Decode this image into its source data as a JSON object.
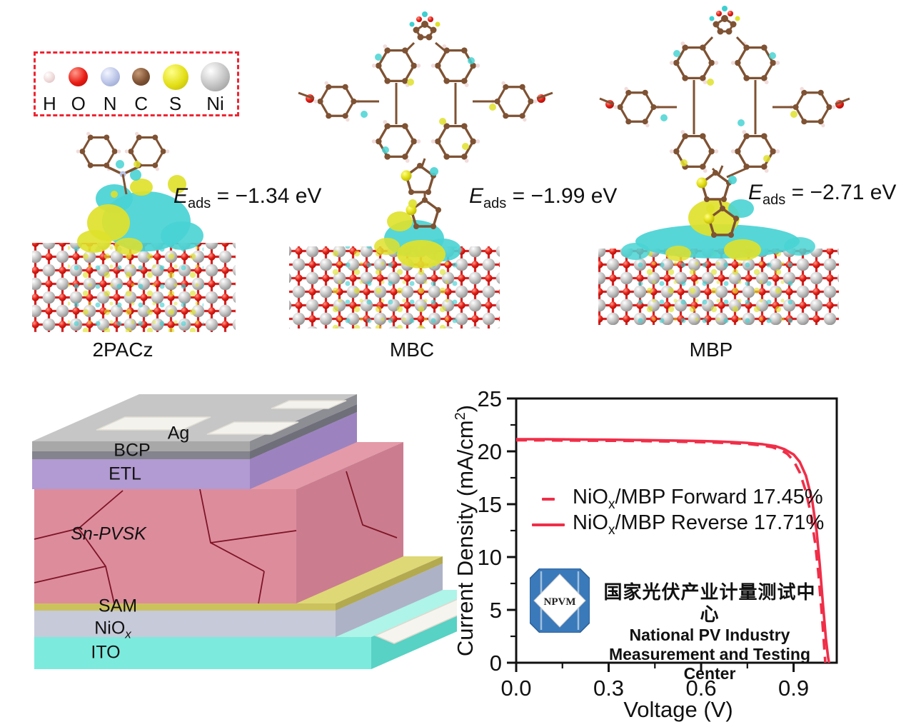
{
  "atom_legend": {
    "atoms": [
      {
        "symbol": "H",
        "color": "#f1dcdc",
        "ball_css": "width:16px;height:16px;background:radial-gradient(circle at 35% 30%,#ffffff,#f1dcdc 50%,#d9b9b9)"
      },
      {
        "symbol": "O",
        "color": "#e81c14",
        "ball_css": "width:27px;height:27px;background:radial-gradient(circle at 35% 30%,#ff9a8a,#e81c14 55%,#a80d08)"
      },
      {
        "symbol": "N",
        "color": "#b9c3e6",
        "ball_css": "width:27px;height:27px;background:radial-gradient(circle at 35% 30%,#f2f5ff,#b9c3e6 55%,#8e9cc8)"
      },
      {
        "symbol": "C",
        "color": "#7e5233",
        "ball_css": "width:25px;height:25px;background:radial-gradient(circle at 35% 30%,#c79a76,#7e5233 55%,#5b3a22)"
      },
      {
        "symbol": "S",
        "color": "#e3df17",
        "ball_css": "width:36px;height:36px;background:radial-gradient(circle at 35% 30%,#ffff8a,#e3df17 55%,#b8b409)"
      },
      {
        "symbol": "Ni",
        "color": "#c2c2c2",
        "ball_css": "width:41px;height:41px;background:radial-gradient(circle at 35% 30%,#ffffff,#c2c2c2 55%,#8f8f8f)"
      }
    ]
  },
  "panels": [
    {
      "molecule": "2PACz",
      "eads_symbol": "E",
      "eads_subscript": "ads",
      "eads_value": "= −1.34 eV"
    },
    {
      "molecule": "MBC",
      "eads_symbol": "E",
      "eads_subscript": "ads",
      "eads_value": "= −1.99 eV"
    },
    {
      "molecule": "MBP",
      "eads_symbol": "E",
      "eads_subscript": "ads",
      "eads_value": "= −2.71 eV"
    }
  ],
  "device": {
    "layers": [
      {
        "label": "Ag",
        "subscript": ""
      },
      {
        "label": "BCP",
        "subscript": ""
      },
      {
        "label": "ETL",
        "subscript": ""
      },
      {
        "label": "Sn-PVSK",
        "subscript": ""
      },
      {
        "label": "SAM",
        "subscript": ""
      },
      {
        "label": "NiO",
        "subscript": "x"
      },
      {
        "label": "ITO",
        "subscript": ""
      }
    ]
  },
  "chart_data": {
    "type": "line",
    "title": "",
    "xlabel": "Voltage (V)",
    "ylabel_pre": "Current Density (mA/cm",
    "ylabel_sup": "2",
    "ylabel_post": ")",
    "xlim": [
      0,
      1.04
    ],
    "ylim": [
      0,
      25
    ],
    "grid": false,
    "legend_position": "upper-left-inside",
    "xticks": [
      {
        "v": 0.0,
        "label": "0.0"
      },
      {
        "v": 0.3,
        "label": "0.3"
      },
      {
        "v": 0.6,
        "label": "0.6"
      },
      {
        "v": 0.9,
        "label": "0.9"
      }
    ],
    "yticks": [
      {
        "v": 0,
        "label": "0"
      },
      {
        "v": 5,
        "label": "5"
      },
      {
        "v": 10,
        "label": "10"
      },
      {
        "v": 15,
        "label": "15"
      },
      {
        "v": 20,
        "label": "20"
      },
      {
        "v": 25,
        "label": "25"
      }
    ],
    "xminor": [
      0.15,
      0.45,
      0.75
    ],
    "yminor": [
      2.5,
      7.5,
      12.5,
      17.5,
      22.5
    ],
    "series": [
      {
        "name_pre": "NiO",
        "name_sub": "x",
        "name_post": "/MBP Forward 17.45%",
        "style": "dashed",
        "color": "#f02e48",
        "points": [
          [
            0,
            21.05
          ],
          [
            0.05,
            21.05
          ],
          [
            0.1,
            21.04
          ],
          [
            0.15,
            21.03
          ],
          [
            0.2,
            21.02
          ],
          [
            0.25,
            21.01
          ],
          [
            0.3,
            21.0
          ],
          [
            0.35,
            20.99
          ],
          [
            0.4,
            20.97
          ],
          [
            0.45,
            20.95
          ],
          [
            0.5,
            20.93
          ],
          [
            0.55,
            20.9
          ],
          [
            0.6,
            20.87
          ],
          [
            0.65,
            20.83
          ],
          [
            0.7,
            20.78
          ],
          [
            0.75,
            20.7
          ],
          [
            0.8,
            20.55
          ],
          [
            0.83,
            20.4
          ],
          [
            0.86,
            20.1
          ],
          [
            0.88,
            19.75
          ],
          [
            0.9,
            19.1
          ],
          [
            0.92,
            18.0
          ],
          [
            0.94,
            16.2
          ],
          [
            0.955,
            14.2
          ],
          [
            0.97,
            11.3
          ],
          [
            0.98,
            8.6
          ],
          [
            0.99,
            5.2
          ],
          [
            0.998,
            2.0
          ],
          [
            1.003,
            0
          ]
        ]
      },
      {
        "name_pre": "NiO",
        "name_sub": "x",
        "name_post": "/MBP Reverse 17.71%",
        "style": "solid",
        "color": "#f02e48",
        "points": [
          [
            0,
            21.15
          ],
          [
            0.1,
            21.14
          ],
          [
            0.2,
            21.12
          ],
          [
            0.3,
            21.1
          ],
          [
            0.4,
            21.07
          ],
          [
            0.5,
            21.03
          ],
          [
            0.6,
            20.97
          ],
          [
            0.65,
            20.93
          ],
          [
            0.7,
            20.88
          ],
          [
            0.75,
            20.8
          ],
          [
            0.8,
            20.67
          ],
          [
            0.84,
            20.5
          ],
          [
            0.87,
            20.2
          ],
          [
            0.9,
            19.7
          ],
          [
            0.92,
            19.0
          ],
          [
            0.94,
            17.7
          ],
          [
            0.96,
            15.4
          ],
          [
            0.975,
            12.4
          ],
          [
            0.985,
            9.2
          ],
          [
            0.995,
            5.6
          ],
          [
            1.005,
            2.2
          ],
          [
            1.012,
            0.5
          ],
          [
            1.015,
            0
          ]
        ]
      }
    ],
    "certification": {
      "logo_text": "NPVM",
      "line_cn": "国家光伏产业计量测试中心",
      "line_en1": "National PV Industry",
      "line_en2": "Measurement and Testing Center"
    }
  }
}
